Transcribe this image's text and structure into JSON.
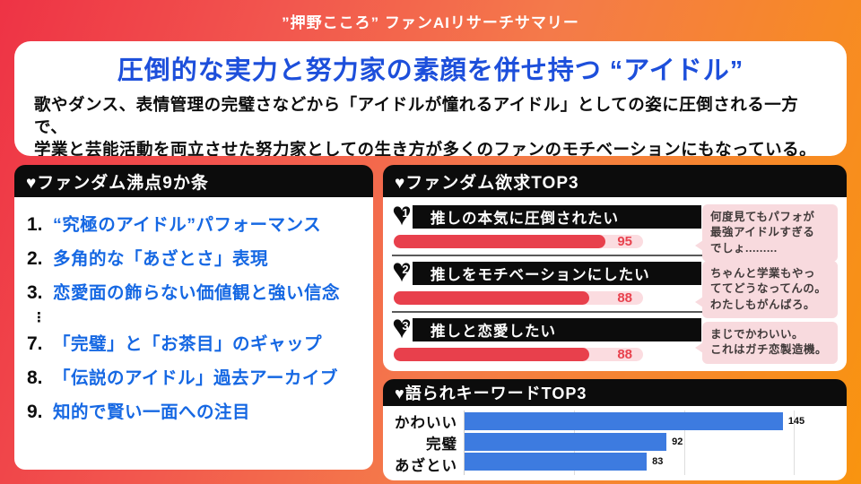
{
  "colors": {
    "background_gradient_left": "#ee3345",
    "background_gradient_right": "#f9940f",
    "title_blue": "#1d4fdb",
    "list_blue": "#1668e3",
    "panel_black": "#0c0c0c",
    "bar_red": "#e8404c",
    "bar_red_track": "#fbdce0",
    "bubble_pink": "#f8dade",
    "bar_blue": "#3d7be0"
  },
  "page_header": {
    "title": "”押野こころ” ファンAIリサーチサマリー"
  },
  "summary_card": {
    "title": "圧倒的な実力と努力家の素顔を併せ持つ “アイドル”",
    "body_lines": [
      "歌やダンス、表情管理の完璧さなどから「アイドルが憧れるアイドル」としての姿に圧倒される一方で、",
      "学業と芸能活動を両立させた努力家としての生き方が多くのファンのモチベーションにもなっている。"
    ]
  },
  "boiling_points": {
    "heading": "♥ファンダム沸点9か条",
    "ellipsis": "⋮",
    "items": [
      {
        "no": "1.",
        "text": "“究極のアイドル”パフォーマンス"
      },
      {
        "no": "2.",
        "text": "多角的な「あざとさ」表現"
      },
      {
        "no": "3.",
        "text": "恋愛面の飾らない価値観と強い信念"
      },
      {
        "no": "7.",
        "text": "「完璧」と「お茶目」のギャップ"
      },
      {
        "no": "8.",
        "text": "「伝説のアイドル」過去アーカイブ"
      },
      {
        "no": "9.",
        "text": "知的で賢い一面への注目"
      }
    ]
  },
  "desires": {
    "heading": "♥ファンダム欲求TOP3",
    "max_scale": 112,
    "items": [
      {
        "rank": "1",
        "label": "推しの本気に圧倒されたい",
        "value": 95,
        "comment": "何度見てもパフォが\n最強アイドルすぎる\nでしょ........."
      },
      {
        "rank": "2",
        "label": "推しをモチベーションにしたい",
        "value": 88,
        "comment": "ちゃんと学業もやっ\nててどうなってんの。\nわたしもがんばろ。"
      },
      {
        "rank": "3",
        "label": "推しと恋愛したい",
        "value": 88,
        "comment": "まじでかわいい。\nこれはガチ恋製造機。"
      }
    ]
  },
  "keywords": {
    "heading": "♥語られキーワードTOP3",
    "max_scale": 170,
    "items": [
      {
        "label": "かわいい",
        "value": 145
      },
      {
        "label": "完璧",
        "value": 92
      },
      {
        "label": "あざとい",
        "value": 83
      }
    ]
  },
  "chart_data": [
    {
      "type": "bar",
      "orientation": "horizontal",
      "title": "ファンダム欲求TOP3",
      "categories": [
        "推しの本気に圧倒されたい",
        "推しをモチベーションにしたい",
        "推しと恋愛したい"
      ],
      "values": [
        95,
        88,
        88
      ],
      "bar_color": "#e8404c",
      "xlim": [
        0,
        112
      ],
      "annotations": [
        "何度見てもパフォが最強アイドルすぎるでしょ.........",
        "ちゃんと学業もやっててどうなってんの。わたしもがんばろ。",
        "まじでかわいい。これはガチ恋製造機。"
      ]
    },
    {
      "type": "bar",
      "orientation": "horizontal",
      "title": "語られキーワードTOP3",
      "categories": [
        "かわいい",
        "完璧",
        "あざとい"
      ],
      "values": [
        145,
        92,
        83
      ],
      "bar_color": "#3d7be0",
      "xlim": [
        0,
        170
      ],
      "grid": "vertical, every 50"
    }
  ]
}
